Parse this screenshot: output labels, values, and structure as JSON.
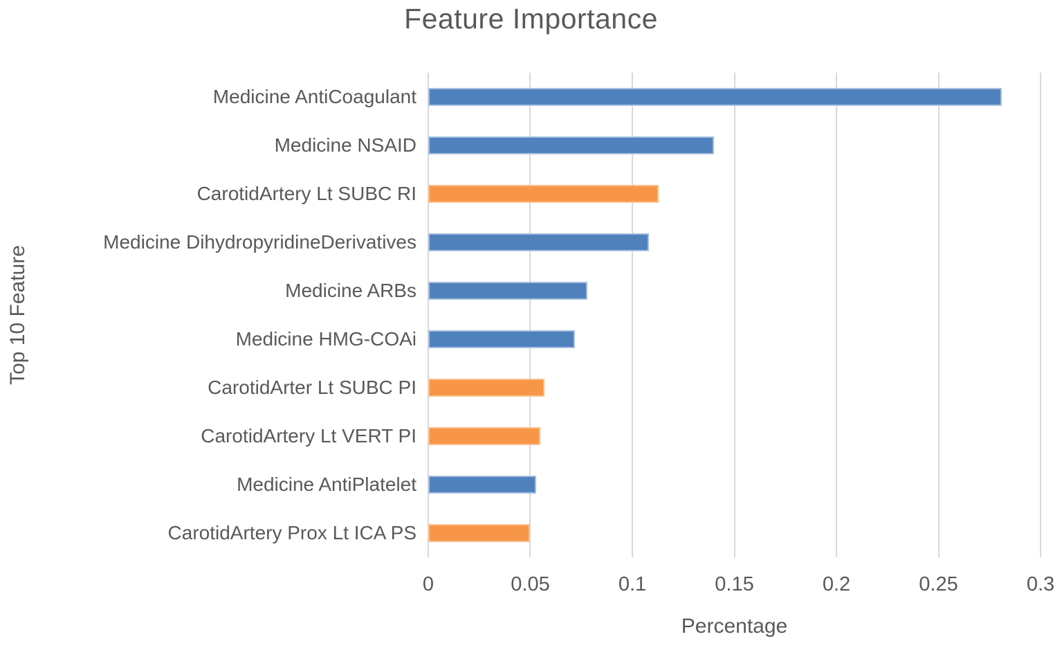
{
  "colors": {
    "blue": "#4F81BD",
    "blue_border": "#A7C0DE",
    "orange": "#F79646",
    "orange_border": "#FAC090",
    "text": "#595959",
    "gridline": "#D9D9D9"
  },
  "chart_data": {
    "type": "bar",
    "orientation": "horizontal",
    "title": "Feature Importance",
    "xlabel": "Percentage",
    "ylabel": "Top 10 Feature",
    "xlim": [
      0,
      0.3
    ],
    "xticks": [
      "0",
      "0.05",
      "0.1",
      "0.15",
      "0.2",
      "0.25",
      "0.3"
    ],
    "grid": true,
    "legend": false,
    "categories": [
      "Medicine AntiCoagulant",
      "Medicine NSAID",
      "CarotidArtery Lt SUBC RI",
      "Medicine DihydropyridineDerivatives",
      "Medicine ARBs",
      "Medicine HMG-COAi",
      "CarotidArter Lt SUBC PI",
      "CarotidArtery Lt VERT PI",
      "Medicine AntiPlatelet",
      "CarotidArtery Prox Lt ICA PS"
    ],
    "values": [
      0.281,
      0.14,
      0.113,
      0.108,
      0.078,
      0.072,
      0.057,
      0.055,
      0.053,
      0.05
    ],
    "bar_colors": [
      "blue",
      "blue",
      "orange",
      "blue",
      "blue",
      "blue",
      "orange",
      "orange",
      "blue",
      "orange"
    ]
  }
}
